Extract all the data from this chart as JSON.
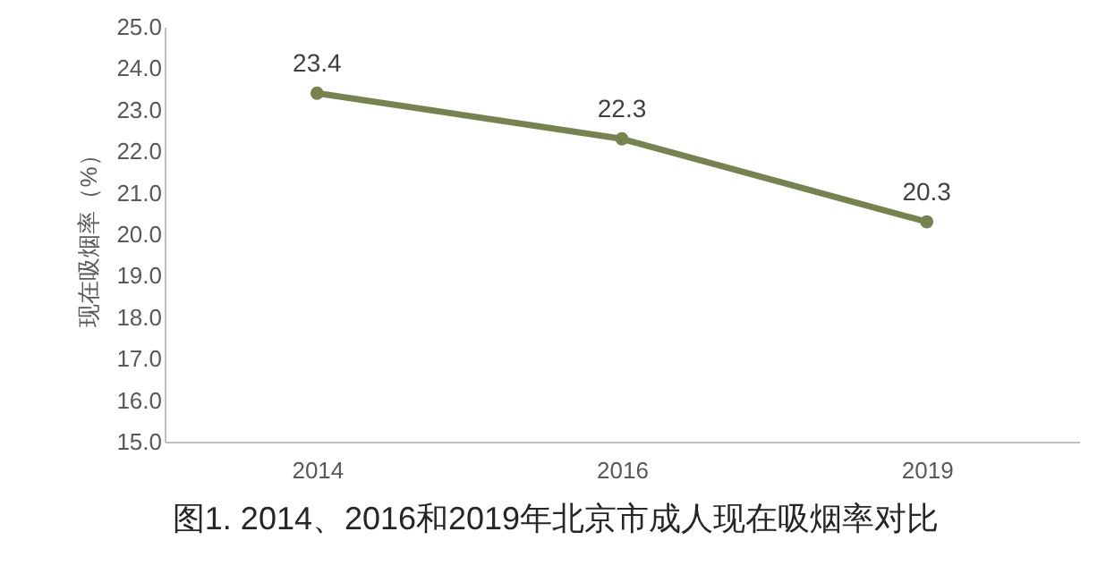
{
  "chart_data": {
    "type": "line",
    "title": "图1. 2014、2016和2019年北京市成人现在吸烟率对比",
    "ylabel": "现在吸烟率（%）",
    "categories": [
      "2014",
      "2016",
      "2019"
    ],
    "series": [
      {
        "color": "#77834f",
        "values": [
          23.4,
          22.3,
          20.3
        ]
      }
    ],
    "ylim": [
      15,
      25
    ],
    "yticks": [
      {
        "value": 15,
        "label": "15.0"
      },
      {
        "value": 16,
        "label": "16.0"
      },
      {
        "value": 17,
        "label": "17.0"
      },
      {
        "value": 18,
        "label": "18.0"
      },
      {
        "value": 19,
        "label": "19.0"
      },
      {
        "value": 20,
        "label": "20.0"
      },
      {
        "value": 21,
        "label": "21.0"
      },
      {
        "value": 22,
        "label": "22.0"
      },
      {
        "value": 23,
        "label": "23.0"
      },
      {
        "value": 24,
        "label": "24.0"
      },
      {
        "value": 25,
        "label": "25.0"
      }
    ],
    "grid": false,
    "marker": "circle",
    "line_style": "solid",
    "data_labels": true
  }
}
